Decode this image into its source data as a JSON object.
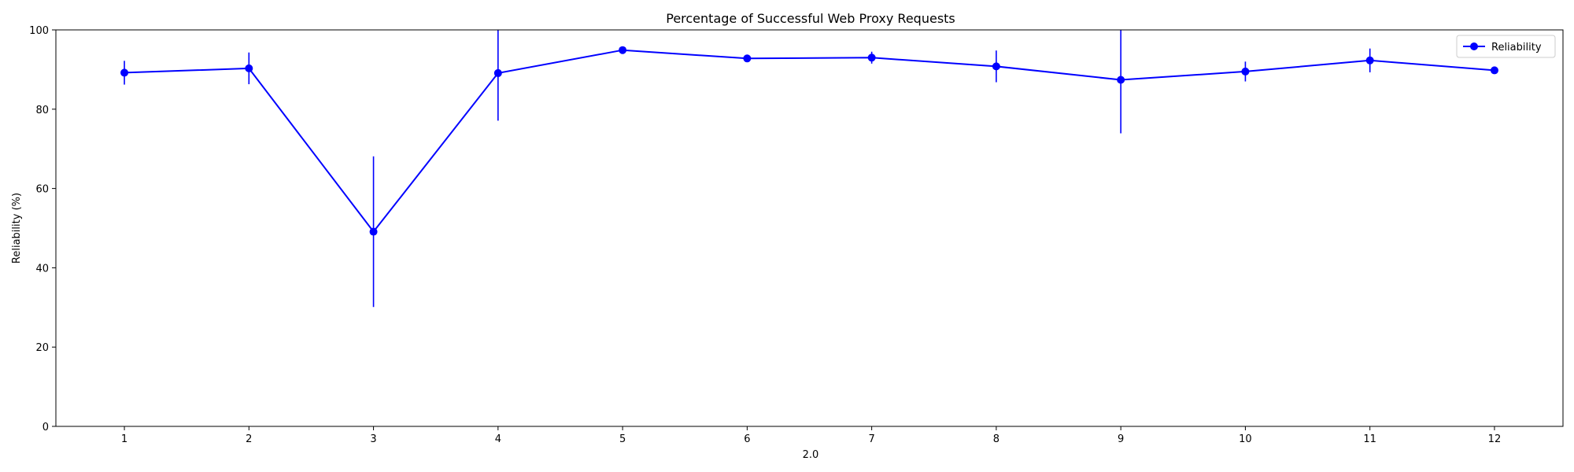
{
  "chart_data": {
    "type": "line",
    "title": "Percentage of Successful Web Proxy Requests",
    "xlabel": "2.0",
    "ylabel": "Reliability (%)",
    "x": [
      1,
      2,
      3,
      4,
      5,
      6,
      7,
      8,
      9,
      10,
      11,
      12
    ],
    "xlim": [
      0.45,
      12.55
    ],
    "ylim": [
      0,
      100
    ],
    "yticks": [
      0,
      20,
      40,
      60,
      80,
      100
    ],
    "grid": false,
    "legend_position": "top-right",
    "series": [
      {
        "name": "Reliability",
        "color": "#0000ff",
        "marker": "circle",
        "values": [
          89.2,
          90.3,
          49.1,
          89.1,
          94.9,
          92.8,
          93.0,
          90.8,
          87.4,
          89.5,
          92.3,
          89.8
        ],
        "errors": [
          3.0,
          4.0,
          19.0,
          12.0,
          0.6,
          0.5,
          1.5,
          4.0,
          13.5,
          2.5,
          3.0,
          0.6
        ]
      }
    ]
  }
}
